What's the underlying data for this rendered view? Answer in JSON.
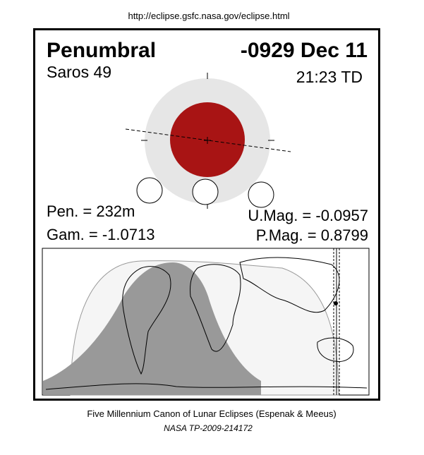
{
  "header": {
    "url": "http://eclipse.gsfc.nasa.gov/eclipse.html"
  },
  "eclipse": {
    "type": "Penumbral",
    "date": "-0929 Dec 11",
    "saros": "Saros  49",
    "time": "21:23 TD",
    "pen": "Pen. = 232m",
    "gam": "Gam. = -1.0713",
    "umag": "U.Mag. = -0.0957",
    "pmag": "P.Mag. = 0.8799"
  },
  "footer": {
    "canon": "Five Millennium Canon of Lunar Eclipses (Espenak & Meeus)",
    "reference": "NASA TP-2009-214172"
  }
}
